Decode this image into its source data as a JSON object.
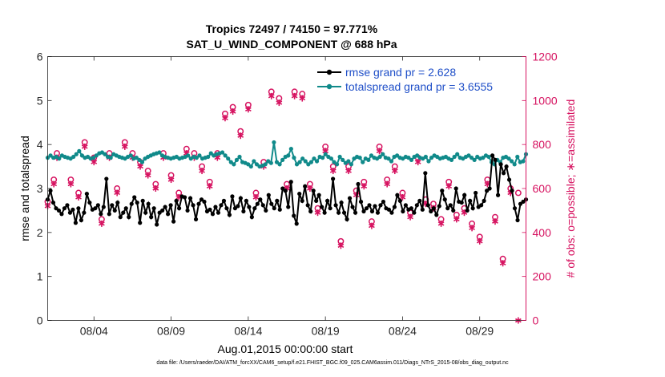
{
  "chart_data": {
    "type": "line",
    "title": "Tropics 72497 / 74150 = 97.771%",
    "subtitle": "SAT_U_WIND_COMPONENT @ 688 hPa",
    "xlabel": "Aug.01,2015 00:00:00 start",
    "ylabel_left": "rmse and totalspread",
    "ylabel_right": "# of obs: o=possible; ∗=assimilated",
    "x_ticks": [
      4,
      9,
      14,
      19,
      24,
      29
    ],
    "x_tick_labels": [
      "08/04",
      "08/09",
      "08/14",
      "08/19",
      "08/24",
      "08/29"
    ],
    "xlim": [
      1.0,
      32.0
    ],
    "ylim_left": [
      0,
      6
    ],
    "y_ticks_left": [
      0,
      1,
      2,
      3,
      4,
      5,
      6
    ],
    "ylim_right": [
      0,
      1200
    ],
    "y_ticks_right": [
      0,
      200,
      400,
      600,
      800,
      1000,
      1200
    ],
    "legend": [
      "rmse grand pr = 2.628",
      "totalspread grand pr = 3.6555"
    ],
    "legend_position": "top-right",
    "series": [
      {
        "name": "rmse",
        "axis": "left",
        "color": "#000000",
        "values": [
          2.75,
          2.95,
          2.68,
          2.55,
          2.5,
          2.42,
          2.55,
          2.62,
          2.45,
          2.52,
          2.22,
          2.55,
          2.28,
          2.45,
          2.88,
          2.68,
          2.52,
          2.55,
          2.62,
          2.42,
          2.58,
          3.22,
          2.42,
          2.62,
          2.5,
          2.68,
          2.35,
          2.45,
          2.55,
          2.35,
          2.65,
          2.8,
          2.68,
          2.22,
          2.72,
          2.45,
          2.65,
          2.35,
          2.55,
          2.18,
          2.45,
          2.5,
          2.58,
          2.42,
          2.62,
          2.25,
          2.72,
          2.55,
          2.82,
          2.8,
          2.5,
          2.78,
          2.62,
          2.3,
          2.65,
          2.75,
          2.7,
          2.48,
          2.52,
          2.42,
          2.58,
          2.45,
          2.62,
          2.72,
          2.55,
          2.4,
          2.82,
          2.55,
          2.6,
          2.78,
          2.48,
          2.72,
          2.58,
          2.35,
          2.55,
          2.65,
          2.75,
          2.62,
          2.5,
          2.85,
          2.65,
          2.55,
          2.72,
          2.52,
          3.0,
          2.95,
          2.58,
          3.15,
          2.38,
          2.2,
          2.88,
          2.72,
          3.05,
          2.62,
          2.48,
          2.95,
          2.72,
          2.85,
          2.58,
          2.45,
          2.72,
          2.55,
          3.22,
          2.62,
          2.45,
          2.68,
          2.45,
          2.3,
          2.78,
          2.58,
          2.45,
          3.1,
          2.7,
          2.48,
          2.55,
          2.62,
          2.48,
          2.6,
          2.45,
          2.62,
          2.7,
          2.55,
          2.52,
          2.45,
          2.58,
          2.85,
          2.72,
          2.48,
          2.62,
          2.52,
          2.55,
          2.45,
          2.62,
          2.72,
          2.52,
          3.35,
          2.62,
          2.48,
          2.55,
          2.4,
          2.6,
          2.95,
          2.75,
          2.55,
          2.62,
          2.5,
          3.0,
          2.7,
          2.68,
          2.85,
          2.5,
          2.72,
          2.55,
          2.9,
          2.58,
          2.62,
          2.72,
          2.95,
          3.0,
          3.75,
          3.65,
          2.85,
          3.55,
          3.35,
          3.5,
          3.2,
          2.95,
          2.55,
          2.28,
          2.65,
          2.7,
          2.75
        ]
      },
      {
        "name": "totalspread",
        "axis": "left",
        "color": "#108a8a",
        "values": [
          3.7,
          3.75,
          3.7,
          3.72,
          3.68,
          3.75,
          3.72,
          3.7,
          3.68,
          3.72,
          3.78,
          3.85,
          3.75,
          3.7,
          3.72,
          3.68,
          3.7,
          3.75,
          3.8,
          3.82,
          3.78,
          3.72,
          3.7,
          3.78,
          3.75,
          3.72,
          3.7,
          3.68,
          3.72,
          3.75,
          3.68,
          3.7,
          3.65,
          3.6,
          3.68,
          3.72,
          3.75,
          3.78,
          3.8,
          3.82,
          3.75,
          3.72,
          3.7,
          3.68,
          3.7,
          3.72,
          3.68,
          3.7,
          3.72,
          3.75,
          3.68,
          3.72,
          3.7,
          3.75,
          3.68,
          3.7,
          3.72,
          3.8,
          3.75,
          3.78,
          3.8,
          3.82,
          3.75,
          3.68,
          3.6,
          3.55,
          3.65,
          3.72,
          3.6,
          3.58,
          3.55,
          3.5,
          3.62,
          3.55,
          3.5,
          3.52,
          3.55,
          3.62,
          3.58,
          4.05,
          3.6,
          3.55,
          3.65,
          3.72,
          3.75,
          3.9,
          3.7,
          3.55,
          3.6,
          3.68,
          3.62,
          3.55,
          3.6,
          3.68,
          3.62,
          3.72,
          3.7,
          3.78,
          3.72,
          3.68,
          3.6,
          3.55,
          3.72,
          3.65,
          3.58,
          3.62,
          3.55,
          3.68,
          3.72,
          3.7,
          3.6,
          3.68,
          3.65,
          3.75,
          3.7,
          3.68,
          3.72,
          3.78,
          3.7,
          3.68,
          3.62,
          3.72,
          3.75,
          3.7,
          3.68,
          3.72,
          3.7,
          3.65,
          3.72,
          3.75,
          3.7,
          3.68,
          3.72,
          3.62,
          3.7,
          3.75,
          3.72,
          3.68,
          3.7,
          3.72,
          3.68,
          3.65,
          3.72,
          3.78,
          3.7,
          3.68,
          3.72,
          3.75,
          3.7,
          3.65,
          3.72,
          3.68,
          3.7,
          3.75,
          3.72,
          3.6,
          3.55,
          3.65,
          3.6,
          3.7,
          3.72,
          3.68,
          3.62,
          3.55,
          3.72,
          3.6,
          3.62,
          3.78
        ]
      },
      {
        "name": "possible",
        "axis": "right",
        "marker": "o",
        "color": "#d6115f",
        "x": [
          1.0,
          1.4,
          1.6,
          2.5,
          3.0,
          3.4,
          4.0,
          4.5,
          5.0,
          5.5,
          6.0,
          6.5,
          7.0,
          7.5,
          8.0,
          8.5,
          9.0,
          9.5,
          10.0,
          10.5,
          11.0,
          11.5,
          12.0,
          12.5,
          13.0,
          13.5,
          14.0,
          14.5,
          15.0,
          15.5,
          16.0,
          16.5,
          17.0,
          17.5,
          18.0,
          18.5,
          19.0,
          19.5,
          20.0,
          20.5,
          21.0,
          21.5,
          22.0,
          22.5,
          23.0,
          23.5,
          24.0,
          24.5,
          25.0,
          25.5,
          26.0,
          26.5,
          27.0,
          27.5,
          28.0,
          28.5,
          29.0,
          29.5,
          30.0,
          30.5,
          31.0,
          31.5
        ],
        "values": [
          540,
          640,
          760,
          640,
          580,
          810,
          740,
          460,
          760,
          600,
          810,
          760,
          720,
          680,
          620,
          760,
          660,
          580,
          780,
          760,
          700,
          630,
          760,
          940,
          970,
          860,
          980,
          580,
          720,
          1040,
          1010,
          620,
          1040,
          1030,
          620,
          510,
          790,
          700,
          360,
          700,
          590,
          630,
          450,
          790,
          640,
          700,
          580,
          490,
          740,
          550,
          530,
          460,
          630,
          480,
          510,
          440,
          380,
          640,
          470,
          280,
          600,
          580
        ]
      },
      {
        "name": "assimilated",
        "axis": "right",
        "marker": "*",
        "color": "#d6115f",
        "x": [
          1.0,
          1.4,
          1.6,
          2.5,
          3.0,
          3.4,
          4.0,
          4.5,
          5.0,
          5.5,
          6.0,
          6.5,
          7.0,
          7.5,
          8.0,
          8.5,
          9.0,
          9.5,
          10.0,
          10.5,
          11.0,
          11.5,
          12.0,
          12.5,
          13.0,
          13.5,
          14.0,
          14.5,
          15.0,
          15.5,
          16.0,
          16.5,
          17.0,
          17.5,
          18.0,
          18.5,
          19.0,
          19.5,
          20.0,
          20.5,
          21.0,
          21.5,
          22.0,
          22.5,
          23.0,
          23.5,
          24.0,
          24.5,
          25.0,
          25.5,
          26.0,
          26.5,
          27.0,
          27.5,
          28.0,
          28.5,
          29.0,
          29.5,
          30.0,
          30.5,
          31.0,
          31.5
        ],
        "values": [
          520,
          620,
          740,
          620,
          560,
          790,
          720,
          440,
          740,
          580,
          790,
          740,
          700,
          660,
          600,
          740,
          640,
          560,
          760,
          740,
          680,
          610,
          740,
          920,
          950,
          840,
          960,
          560,
          700,
          1020,
          990,
          600,
          1020,
          1010,
          600,
          490,
          770,
          680,
          340,
          680,
          570,
          610,
          430,
          770,
          620,
          680,
          560,
          470,
          720,
          530,
          510,
          440,
          610,
          460,
          490,
          420,
          360,
          620,
          450,
          260,
          580,
          0
        ]
      }
    ]
  }
}
